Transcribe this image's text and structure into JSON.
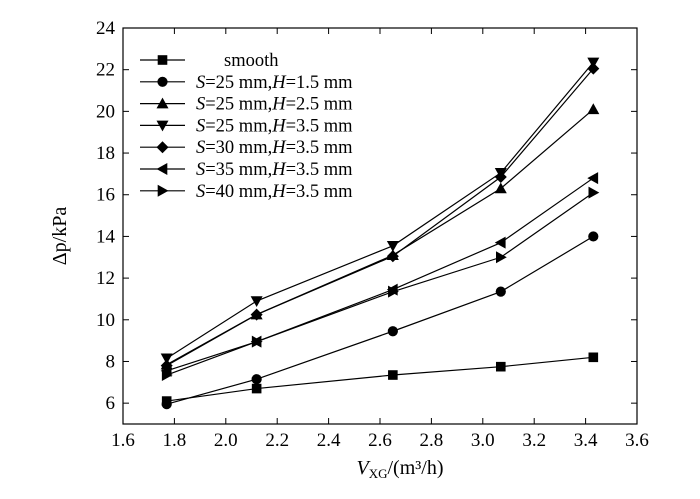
{
  "chart_data": {
    "type": "line",
    "title": "",
    "xlabel": {
      "main": "V",
      "sub": "XG",
      "unit": "/(m³/h)"
    },
    "ylabel": "Δp/kPa",
    "xlim": [
      1.6,
      3.6
    ],
    "ylim": [
      5,
      24
    ],
    "xticks": [
      1.6,
      1.8,
      2.0,
      2.2,
      2.4,
      2.6,
      2.8,
      3.0,
      3.2,
      3.4,
      3.6
    ],
    "xtick_labels": [
      "1.6",
      "1.8",
      "2.0",
      "2.2",
      "2.4",
      "2.6",
      "2.8",
      "3.0",
      "3.2",
      "3.4",
      "3.6"
    ],
    "yticks": [
      6,
      8,
      10,
      12,
      14,
      16,
      18,
      20,
      22,
      24
    ],
    "ytick_labels": [
      "6",
      "8",
      "10",
      "12",
      "14",
      "16",
      "18",
      "20",
      "22",
      "24"
    ],
    "grid": false,
    "legend_position": "top-left",
    "x": [
      1.77,
      2.12,
      2.65,
      3.07,
      3.43
    ],
    "series": [
      {
        "name": "smooth",
        "marker": "square",
        "values": [
          6.1,
          6.7,
          7.35,
          7.75,
          8.2
        ],
        "legend": [
          {
            "text": "smooth",
            "italic": false
          }
        ]
      },
      {
        "name": "S=25 mm,H=1.5 mm",
        "marker": "circle",
        "values": [
          5.95,
          7.15,
          9.45,
          11.35,
          14.0
        ],
        "legend": [
          {
            "text": "S",
            "italic": true
          },
          {
            "text": "=25 mm,",
            "italic": false
          },
          {
            "text": "H",
            "italic": true
          },
          {
            "text": "=1.5 mm",
            "italic": false
          }
        ]
      },
      {
        "name": "S=25 mm,H=2.5 mm",
        "marker": "triangle-up",
        "values": [
          7.85,
          10.25,
          13.1,
          16.3,
          20.1
        ],
        "legend": [
          {
            "text": "S",
            "italic": true
          },
          {
            "text": "=25 mm,",
            "italic": false
          },
          {
            "text": "H",
            "italic": true
          },
          {
            "text": "=2.5 mm",
            "italic": false
          }
        ]
      },
      {
        "name": "S=25 mm,H=3.5 mm",
        "marker": "triangle-down",
        "values": [
          8.15,
          10.9,
          13.55,
          17.05,
          22.35
        ],
        "legend": [
          {
            "text": "S",
            "italic": true
          },
          {
            "text": "=25 mm,",
            "italic": false
          },
          {
            "text": "H",
            "italic": true
          },
          {
            "text": "=3.5 mm",
            "italic": false
          }
        ]
      },
      {
        "name": "S=30 mm,H=3.5 mm",
        "marker": "diamond",
        "values": [
          7.8,
          10.25,
          13.05,
          16.85,
          22.05
        ],
        "legend": [
          {
            "text": "S",
            "italic": true
          },
          {
            "text": "=30 mm,",
            "italic": false
          },
          {
            "text": "H",
            "italic": true
          },
          {
            "text": "=3.5 mm",
            "italic": false
          }
        ]
      },
      {
        "name": "S=35 mm,H=3.5 mm",
        "marker": "triangle-left",
        "values": [
          7.55,
          8.95,
          11.45,
          13.7,
          16.8
        ],
        "legend": [
          {
            "text": "S",
            "italic": true
          },
          {
            "text": "=35 mm,",
            "italic": false
          },
          {
            "text": "H",
            "italic": true
          },
          {
            "text": "=3.5 mm",
            "italic": false
          }
        ]
      },
      {
        "name": "S=40 mm,H=3.5 mm",
        "marker": "triangle-right",
        "values": [
          7.35,
          8.95,
          11.35,
          13.0,
          16.1
        ],
        "legend": [
          {
            "text": "S",
            "italic": true
          },
          {
            "text": "=40 mm,",
            "italic": false
          },
          {
            "text": "H",
            "italic": true
          },
          {
            "text": "=3.5 mm",
            "italic": false
          }
        ]
      }
    ]
  }
}
